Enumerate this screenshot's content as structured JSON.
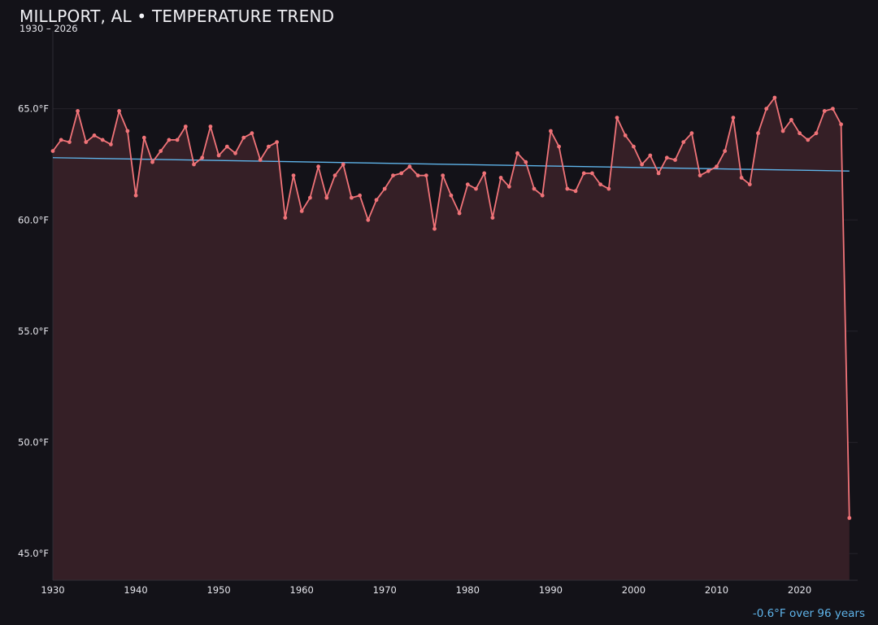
{
  "header": {
    "title": "MILLPORT, AL • TEMPERATURE TREND",
    "subtitle": "1930 – 2026"
  },
  "footer": {
    "trend_note": "-0.6°F over 96 years"
  },
  "colors": {
    "background": "#131218",
    "series_line": "#f07378",
    "series_fill": "#351f26",
    "trend_line": "#5fb4ea",
    "grid": "#25232b",
    "axis_text": "#e6e6ec"
  },
  "chart_data": {
    "type": "area",
    "title": "MILLPORT, AL • TEMPERATURE TREND",
    "subtitle": "1930 – 2026",
    "xlabel": "",
    "ylabel": "",
    "xlim": [
      1930,
      2027
    ],
    "ylim": [
      43.8,
      68.5
    ],
    "x_ticks": [
      1930,
      1940,
      1950,
      1960,
      1970,
      1980,
      1990,
      2000,
      2010,
      2020
    ],
    "x_tick_labels": [
      "1930",
      "1940",
      "1950",
      "1960",
      "1970",
      "1980",
      "1990",
      "2000",
      "2010",
      "2020"
    ],
    "y_ticks": [
      45,
      50,
      55,
      60,
      65
    ],
    "y_tick_labels": [
      "45.0°F",
      "50.0°F",
      "55.0°F",
      "60.0°F",
      "65.0°F"
    ],
    "grid": true,
    "legend": "none",
    "series": [
      {
        "years": [
          1930,
          1931,
          1932,
          1933,
          1934,
          1935,
          1936,
          1937,
          1938,
          1939,
          1940,
          1941,
          1942,
          1943,
          1944,
          1945,
          1946,
          1947,
          1948,
          1949,
          1950,
          1951,
          1952,
          1953,
          1954,
          1955,
          1956,
          1957,
          1958,
          1959,
          1960,
          1961,
          1962,
          1963,
          1964,
          1965,
          1966,
          1967,
          1968,
          1969,
          1970,
          1971,
          1972,
          1973,
          1974,
          1975,
          1976,
          1977,
          1978,
          1979,
          1980,
          1981,
          1982,
          1983,
          1984,
          1985,
          1986,
          1987,
          1988,
          1989,
          1990,
          1991,
          1992,
          1993,
          1994,
          1995,
          1996,
          1997,
          1998,
          1999,
          2000,
          2001,
          2002,
          2003,
          2004,
          2005,
          2006,
          2007,
          2008,
          2009,
          2010,
          2011,
          2012,
          2013,
          2014,
          2015,
          2016,
          2017,
          2018,
          2019,
          2020,
          2021,
          2022,
          2023,
          2024,
          2025,
          2026
        ],
        "values": [
          63.1,
          63.6,
          63.5,
          64.9,
          63.5,
          63.8,
          63.6,
          63.4,
          64.9,
          64.0,
          61.1,
          63.7,
          62.6,
          63.1,
          63.6,
          63.6,
          64.2,
          62.5,
          62.8,
          64.2,
          62.9,
          63.3,
          63.0,
          63.7,
          63.9,
          62.7,
          63.3,
          63.5,
          60.1,
          62.0,
          60.4,
          61.0,
          62.4,
          61.0,
          62.0,
          62.5,
          61.0,
          61.1,
          60.0,
          60.9,
          61.4,
          62.0,
          62.1,
          62.4,
          62.0,
          62.0,
          59.6,
          62.0,
          61.1,
          60.3,
          61.6,
          61.4,
          62.1,
          60.1,
          61.9,
          61.5,
          63.0,
          62.6,
          61.4,
          61.1,
          64.0,
          63.3,
          61.4,
          61.3,
          62.1,
          62.1,
          61.6,
          61.4,
          64.6,
          63.8,
          63.3,
          62.5,
          62.9,
          62.1,
          62.8,
          62.7,
          63.5,
          63.9,
          62.0,
          62.2,
          62.4,
          63.1,
          64.6,
          61.9,
          61.6,
          63.9,
          65.0,
          65.5,
          64.0,
          64.5,
          63.9,
          63.6,
          63.9,
          64.9,
          65.0,
          64.3,
          46.6
        ]
      }
    ],
    "trend": {
      "start": [
        1930,
        62.8
      ],
      "end": [
        2026,
        62.2
      ],
      "change_label": "-0.6°F over 96 years"
    }
  }
}
